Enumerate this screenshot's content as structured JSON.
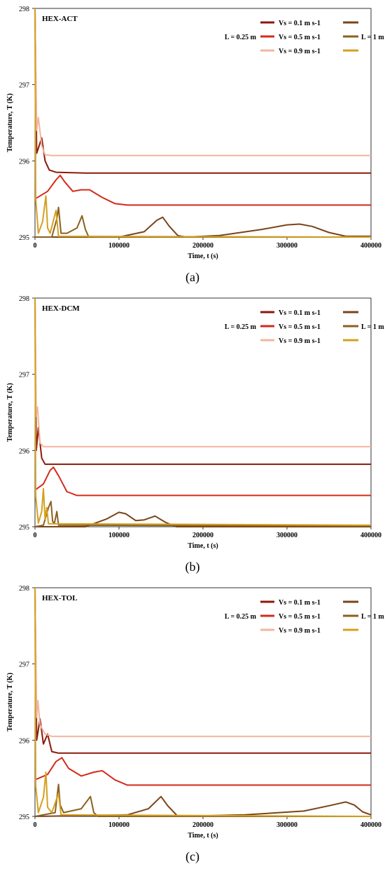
{
  "chart_data": [
    {
      "type": "line",
      "title": "HEX-ACT",
      "caption": "(a)",
      "xlabel": "Time, t (s)",
      "ylabel": "Temperature, T (K)",
      "xlim": [
        0,
        400000
      ],
      "ylim": [
        295,
        298
      ],
      "xticks": [
        "0",
        "100000",
        "200000",
        "300000",
        "400000"
      ],
      "yticks": [
        "295",
        "296",
        "297",
        "298"
      ],
      "legend": {
        "vs_labels": [
          "Vs = 0.1 m s-1",
          "Vs = 0.5 m s-1",
          "Vs = 0.9 m s-1"
        ],
        "group_025": "L = 0.25 m",
        "group_1": "L = 1 m"
      },
      "series": [
        {
          "color": "#8a1a0a",
          "points": [
            [
              0,
              298.0
            ],
            [
              2000,
              296.1
            ],
            [
              8000,
              296.3
            ],
            [
              12000,
              296.0
            ],
            [
              17000,
              295.88
            ],
            [
              25000,
              295.85
            ],
            [
              60000,
              295.84
            ],
            [
              400000,
              295.84
            ]
          ]
        },
        {
          "color": "#d42a1c",
          "points": [
            [
              0,
              295.5
            ],
            [
              15000,
              295.6
            ],
            [
              25000,
              295.75
            ],
            [
              30000,
              295.81
            ],
            [
              35000,
              295.73
            ],
            [
              45000,
              295.6
            ],
            [
              55000,
              295.62
            ],
            [
              65000,
              295.62
            ],
            [
              80000,
              295.52
            ],
            [
              95000,
              295.44
            ],
            [
              110000,
              295.42
            ],
            [
              400000,
              295.42
            ]
          ]
        },
        {
          "color": "#f3b5a0",
          "points": [
            [
              0,
              298.0
            ],
            [
              2000,
              296.4
            ],
            [
              4000,
              296.57
            ],
            [
              8000,
              296.2
            ],
            [
              12000,
              296.08
            ],
            [
              20000,
              296.07
            ],
            [
              400000,
              296.07
            ]
          ]
        },
        {
          "color": "#7a4418",
          "points": [
            [
              0,
              295.0
            ],
            [
              100000,
              295.0
            ],
            [
              130000,
              295.07
            ],
            [
              145000,
              295.22
            ],
            [
              152000,
              295.26
            ],
            [
              160000,
              295.14
            ],
            [
              170000,
              295.02
            ],
            [
              180000,
              295.0
            ],
            [
              220000,
              295.02
            ],
            [
              270000,
              295.1
            ],
            [
              300000,
              295.16
            ],
            [
              315000,
              295.17
            ],
            [
              330000,
              295.14
            ],
            [
              350000,
              295.06
            ],
            [
              370000,
              295.01
            ],
            [
              400000,
              295.01
            ]
          ]
        },
        {
          "color": "#8a6020",
          "points": [
            [
              0,
              295.0
            ],
            [
              20000,
              295.0
            ],
            [
              26000,
              295.24
            ],
            [
              28000,
              295.39
            ],
            [
              31000,
              295.05
            ],
            [
              38000,
              295.05
            ],
            [
              50000,
              295.12
            ],
            [
              56000,
              295.28
            ],
            [
              60000,
              295.1
            ],
            [
              64000,
              295.0
            ],
            [
              400000,
              295.0
            ]
          ]
        },
        {
          "color": "#d4a020",
          "points": [
            [
              0,
              298.0
            ],
            [
              800,
              295.5
            ],
            [
              4000,
              295.05
            ],
            [
              9000,
              295.2
            ],
            [
              13000,
              295.54
            ],
            [
              15000,
              295.12
            ],
            [
              18000,
              295.05
            ],
            [
              25000,
              295.35
            ],
            [
              28000,
              295.01
            ],
            [
              400000,
              295.0
            ]
          ]
        }
      ]
    },
    {
      "type": "line",
      "title": "HEX-DCM",
      "caption": "(b)",
      "xlabel": "Time, t (s)",
      "ylabel": "Temperature, T (K)",
      "xlim": [
        0,
        400000
      ],
      "ylim": [
        295,
        298
      ],
      "xticks": [
        "0",
        "100000",
        "200000",
        "300000",
        "400000"
      ],
      "yticks": [
        "295",
        "296",
        "297",
        "298"
      ],
      "legend": {
        "vs_labels": [
          "Vs = 0.1 m s-1",
          "Vs = 0.5 m s-1",
          "Vs = 0.9 m s-1"
        ],
        "group_025": "L = 0.25 m",
        "group_1": "L = 1 m"
      },
      "series": [
        {
          "color": "#8a1a0a",
          "points": [
            [
              0,
              298.0
            ],
            [
              1500,
              296.0
            ],
            [
              4000,
              296.3
            ],
            [
              8000,
              295.9
            ],
            [
              12000,
              295.82
            ],
            [
              400000,
              295.82
            ]
          ]
        },
        {
          "color": "#d42a1c",
          "points": [
            [
              0,
              295.48
            ],
            [
              10000,
              295.56
            ],
            [
              18000,
              295.74
            ],
            [
              22000,
              295.78
            ],
            [
              28000,
              295.67
            ],
            [
              38000,
              295.46
            ],
            [
              50000,
              295.41
            ],
            [
              400000,
              295.41
            ]
          ]
        },
        {
          "color": "#f3b5a0",
          "points": [
            [
              0,
              298.0
            ],
            [
              1500,
              296.45
            ],
            [
              3000,
              296.57
            ],
            [
              6000,
              296.1
            ],
            [
              10000,
              296.05
            ],
            [
              400000,
              296.05
            ]
          ]
        },
        {
          "color": "#7a4418",
          "points": [
            [
              0,
              295.0
            ],
            [
              60000,
              295.0
            ],
            [
              85000,
              295.1
            ],
            [
              100000,
              295.19
            ],
            [
              108000,
              295.17
            ],
            [
              120000,
              295.08
            ],
            [
              130000,
              295.09
            ],
            [
              143000,
              295.14
            ],
            [
              155000,
              295.06
            ],
            [
              168000,
              295.0
            ],
            [
              400000,
              295.0
            ]
          ]
        },
        {
          "color": "#8a6020",
          "points": [
            [
              0,
              295.0
            ],
            [
              10000,
              295.02
            ],
            [
              16000,
              295.25
            ],
            [
              19000,
              295.33
            ],
            [
              21000,
              295.07
            ],
            [
              23000,
              295.04
            ],
            [
              26000,
              295.2
            ],
            [
              28000,
              295.02
            ],
            [
              400000,
              295.01
            ]
          ]
        },
        {
          "color": "#d4a020",
          "points": [
            [
              0,
              298.0
            ],
            [
              800,
              295.4
            ],
            [
              4000,
              295.05
            ],
            [
              8000,
              295.2
            ],
            [
              10000,
              295.5
            ],
            [
              12000,
              295.1
            ],
            [
              14000,
              295.25
            ],
            [
              16000,
              295.04
            ],
            [
              400000,
              295.02
            ]
          ]
        }
      ]
    },
    {
      "type": "line",
      "title": "HEX-TOL",
      "caption": "(c)",
      "xlabel": "Time, t (s)",
      "ylabel": "Temperature, T (K)",
      "xlim": [
        0,
        400000
      ],
      "ylim": [
        295,
        298
      ],
      "xticks": [
        "0",
        "100000",
        "200000",
        "300000",
        "400000"
      ],
      "yticks": [
        "295",
        "296",
        "297",
        "298"
      ],
      "legend": {
        "vs_labels": [
          "Vs = 0.1 m s-1",
          "Vs = 0.5 m s-1",
          "Vs = 0.9 m s-1"
        ],
        "group_025": "L = 0.25 m",
        "group_1": "L = 1 m"
      },
      "series": [
        {
          "color": "#8a1a0a",
          "points": [
            [
              0,
              298.0
            ],
            [
              2000,
              296.0
            ],
            [
              6000,
              296.28
            ],
            [
              10000,
              295.95
            ],
            [
              15000,
              296.08
            ],
            [
              20000,
              295.85
            ],
            [
              28000,
              295.83
            ],
            [
              400000,
              295.83
            ]
          ]
        },
        {
          "color": "#d42a1c",
          "points": [
            [
              0,
              295.48
            ],
            [
              15000,
              295.55
            ],
            [
              25000,
              295.72
            ],
            [
              32000,
              295.77
            ],
            [
              40000,
              295.63
            ],
            [
              55000,
              295.53
            ],
            [
              70000,
              295.58
            ],
            [
              80000,
              295.6
            ],
            [
              95000,
              295.48
            ],
            [
              110000,
              295.41
            ],
            [
              400000,
              295.41
            ]
          ]
        },
        {
          "color": "#f3b5a0",
          "points": [
            [
              0,
              298.0
            ],
            [
              2000,
              296.3
            ],
            [
              3500,
              296.52
            ],
            [
              6000,
              296.2
            ],
            [
              12000,
              296.08
            ],
            [
              20000,
              296.05
            ],
            [
              400000,
              296.05
            ]
          ]
        },
        {
          "color": "#7a4418",
          "points": [
            [
              0,
              295.0
            ],
            [
              110000,
              295.02
            ],
            [
              135000,
              295.1
            ],
            [
              150000,
              295.26
            ],
            [
              158000,
              295.14
            ],
            [
              170000,
              295.0
            ],
            [
              250000,
              295.02
            ],
            [
              320000,
              295.07
            ],
            [
              350000,
              295.14
            ],
            [
              370000,
              295.19
            ],
            [
              380000,
              295.15
            ],
            [
              390000,
              295.06
            ],
            [
              400000,
              295.02
            ]
          ]
        },
        {
          "color": "#8a6020",
          "points": [
            [
              0,
              295.0
            ],
            [
              24000,
              295.05
            ],
            [
              28000,
              295.42
            ],
            [
              30000,
              295.15
            ],
            [
              34000,
              295.05
            ],
            [
              55000,
              295.1
            ],
            [
              66000,
              295.26
            ],
            [
              70000,
              295.05
            ],
            [
              75000,
              295.0
            ],
            [
              400000,
              295.0
            ]
          ]
        },
        {
          "color": "#d4a020",
          "points": [
            [
              0,
              298.0
            ],
            [
              800,
              295.4
            ],
            [
              4000,
              295.05
            ],
            [
              10000,
              295.25
            ],
            [
              13000,
              295.58
            ],
            [
              15000,
              295.12
            ],
            [
              20000,
              295.05
            ],
            [
              28000,
              295.3
            ],
            [
              31000,
              295.02
            ],
            [
              400000,
              295.0
            ]
          ]
        }
      ]
    }
  ]
}
